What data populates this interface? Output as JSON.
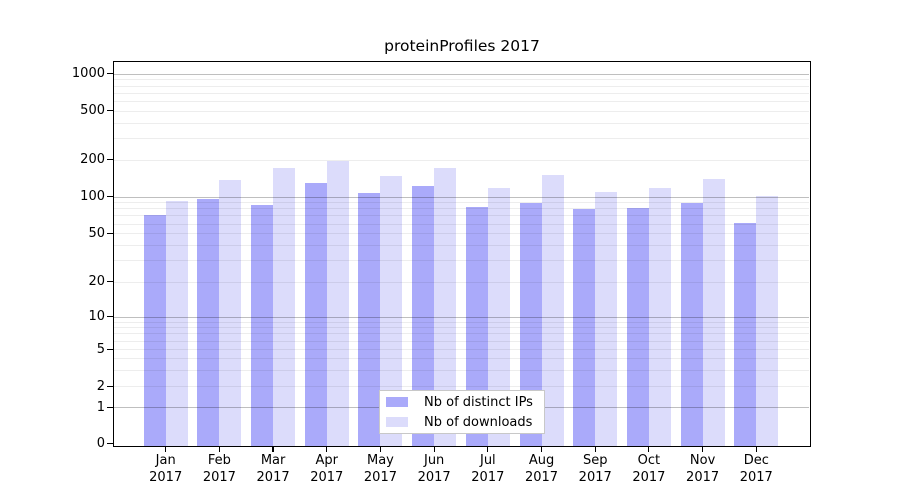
{
  "figure": {
    "background": "#ffffff"
  },
  "chart_data": {
    "type": "bar",
    "title": "proteinProfiles 2017",
    "categories": [
      "Jan 2017",
      "Feb 2017",
      "Mar 2017",
      "Apr 2017",
      "May 2017",
      "Jun 2017",
      "Jul 2017",
      "Aug 2017",
      "Sep 2017",
      "Oct 2017",
      "Nov 2017",
      "Dec 2017"
    ],
    "series": [
      {
        "name": "Nb of distinct IPs",
        "color": "#aaaafa",
        "values": [
          71,
          96,
          86,
          129,
          108,
          123,
          83,
          89,
          79,
          80,
          88,
          61
        ]
      },
      {
        "name": "Nb of downloads",
        "color": "#dcdcfb",
        "values": [
          92,
          137,
          170,
          195,
          147,
          172,
          117,
          151,
          109,
          118,
          139,
          101
        ]
      }
    ],
    "xlabel": "",
    "ylabel": "",
    "yscale": "log-like (log decades above 1, compressed linear segment 0-1)",
    "ylim": [
      0,
      1000
    ],
    "y_tick_labels": [
      "0",
      "1",
      "2",
      "5",
      "10",
      "20",
      "50",
      "100",
      "200",
      "500",
      "1000"
    ],
    "y_tick_values": [
      0,
      1,
      2,
      5,
      10,
      20,
      50,
      100,
      200,
      500,
      1000
    ],
    "major_grid_values": [
      1,
      10,
      100,
      1000
    ],
    "minor_grid_values": [
      2,
      3,
      4,
      5,
      6,
      7,
      8,
      9,
      20,
      30,
      40,
      50,
      60,
      70,
      80,
      90,
      200,
      300,
      400,
      500,
      600,
      700,
      800,
      900
    ],
    "grid": true,
    "legend_position": "inside bottom-center",
    "legend": [
      "Nb of distinct IPs",
      "Nb of downloads"
    ]
  },
  "colors": {
    "bar_distinct_ips": "#aaaafa",
    "bar_downloads": "#dcdcfb",
    "grid_major": "rgba(0,0,0,0.25)",
    "grid_minor": "rgba(0,0,0,0.07)",
    "axis": "#000000",
    "legend_border": "#c8c8c8",
    "legend_background": "#ffffff"
  }
}
